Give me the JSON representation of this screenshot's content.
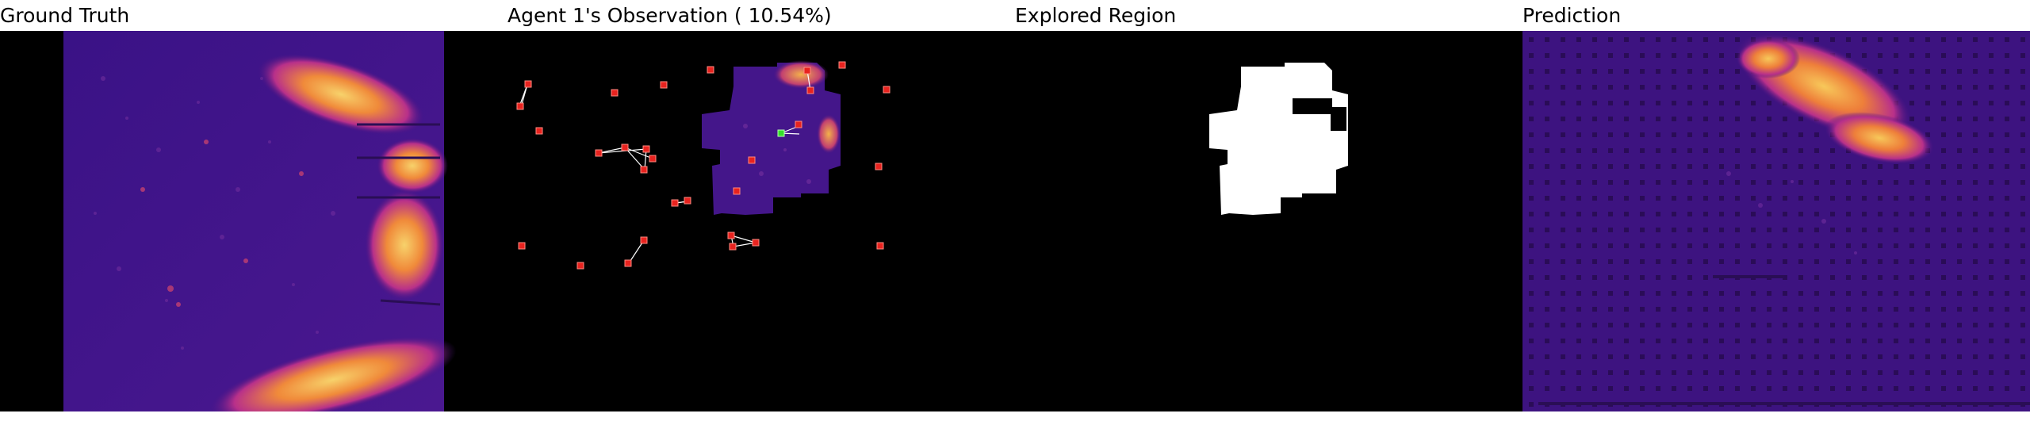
{
  "panels": {
    "ground_truth": {
      "title": "Ground Truth"
    },
    "observation": {
      "title": "Agent 1's Observation ( 10.54%)"
    },
    "explored": {
      "title": "Explored Region"
    },
    "prediction": {
      "title": "Prediction"
    }
  },
  "colors": {
    "background": "#000000",
    "map_base": "#3d1380",
    "map_hot": "#f5b83a",
    "map_warm": "#d9503e",
    "agent_marker": "#e8231f",
    "self_marker": "#33e02a",
    "explored_fill": "#ffffff",
    "link_line": "#ffffff"
  }
}
